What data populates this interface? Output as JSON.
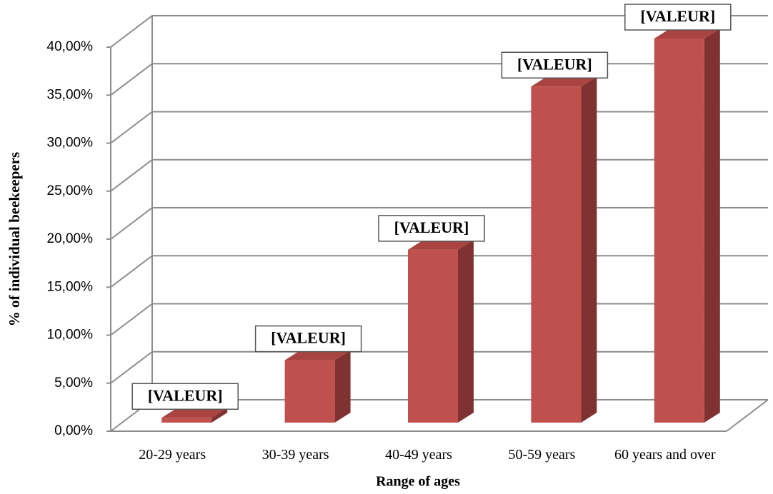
{
  "chart_data": {
    "type": "bar3d",
    "categories": [
      "20-29 years",
      "30-39 years",
      "40-49 years",
      "50-59 years",
      "60 years and over"
    ],
    "values": [
      0.5,
      6.5,
      18,
      35,
      40
    ],
    "annotations": [
      "[VALEUR]",
      "[VALEUR]",
      "[VALEUR]",
      "[VALEUR]",
      "[VALEUR]"
    ],
    "color": "#c0504d",
    "ylabel": "%  of individual beekeepers",
    "xlabel": "Range of ages",
    "ylim": [
      0,
      40
    ],
    "yticks": [
      {
        "value": 0,
        "label": "0,00%"
      },
      {
        "value": 5,
        "label": "5,00%"
      },
      {
        "value": 10,
        "label": "10,00%"
      },
      {
        "value": 15,
        "label": "15,00%"
      },
      {
        "value": 20,
        "label": "20,00%"
      },
      {
        "value": 25,
        "label": "25,00%"
      },
      {
        "value": 30,
        "label": "30,00%"
      },
      {
        "value": 35,
        "label": "35,00%"
      },
      {
        "value": 40,
        "label": "40,00%"
      }
    ],
    "grid": true
  }
}
